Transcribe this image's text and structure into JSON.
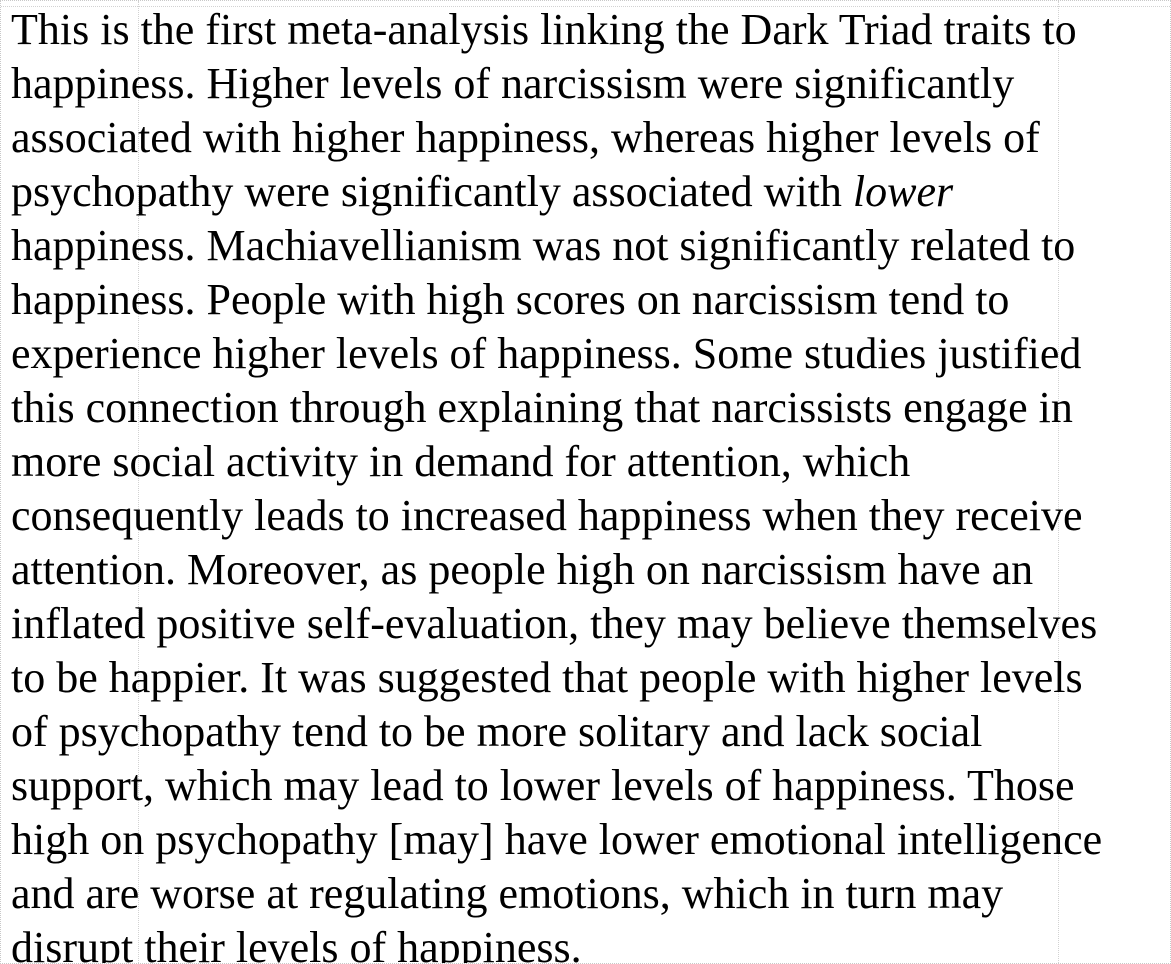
{
  "document": {
    "lines": [
      "This is the first meta-analysis linking the Dark Triad traits to",
      "happiness. Higher levels of narcissism were significantly",
      "associated with higher happiness, whereas higher levels of",
      "psychopathy were significantly associated with ",
      "happiness. Machiavellianism was not significantly related to",
      "happiness. People with high scores on narcissism tend to",
      "experience higher levels of happiness. Some studies justified",
      "this connection through explaining that narcissists engage in",
      "more social activity in demand for attention, which",
      "consequently leads to increased happiness when they receive",
      "attention. Moreover, as people high on narcissism have an",
      "inflated positive self-evaluation, they may believe themselves",
      "to be happier. It was suggested that people with higher levels",
      "of psychopathy tend to be more solitary and lack social",
      "support, which may lead to lower levels of happiness. Those",
      "high on psychopathy [may] have lower emotional intelligence",
      "and are worse at regulating emotions, which in turn may",
      "disrupt their levels of happiness."
    ],
    "emphasis_word": "lower"
  }
}
